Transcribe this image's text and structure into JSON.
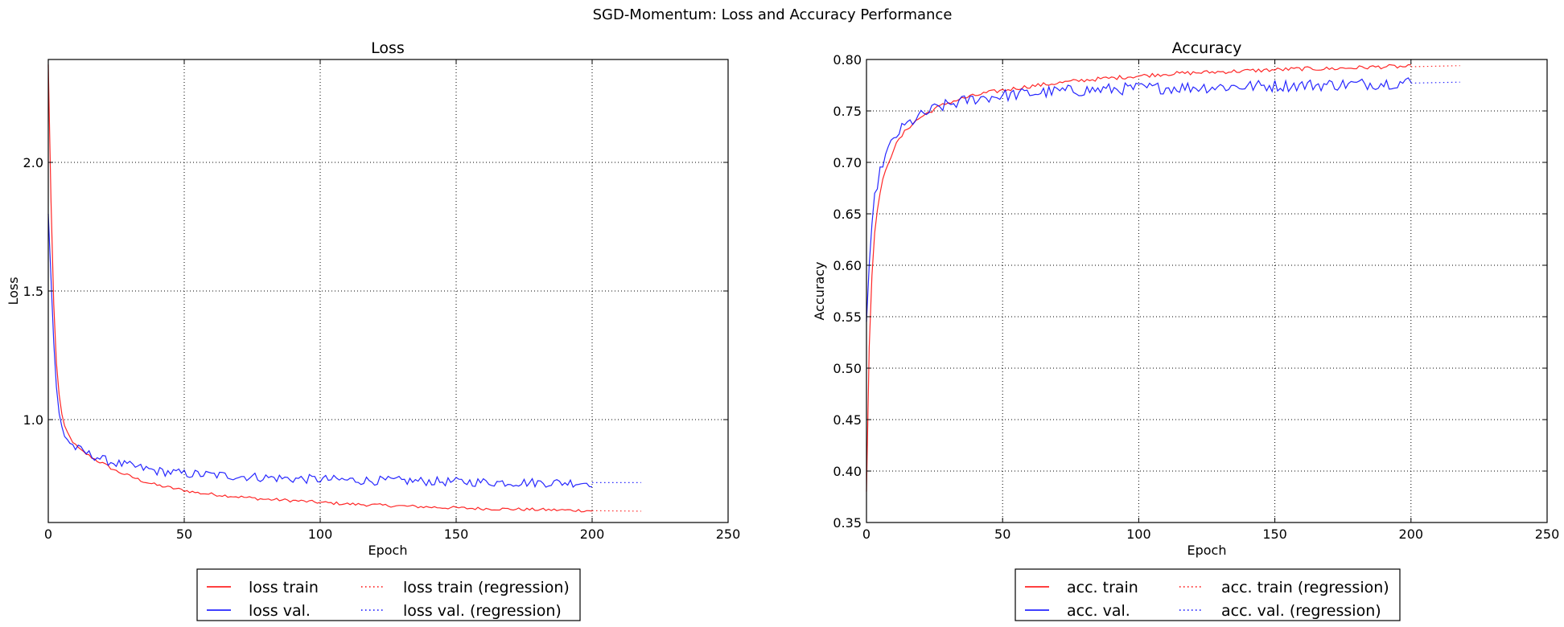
{
  "figure_title": "SGD-Momentum: Loss and Accuracy Performance",
  "colors": {
    "train": "#ff0000",
    "val": "#0000ff",
    "grid": "#000000"
  },
  "chart_data": [
    {
      "id": "loss",
      "type": "line",
      "title": "Loss",
      "xlabel": "Epoch",
      "ylabel": "Loss",
      "xlim": [
        0,
        250
      ],
      "ylim": [
        0.6,
        2.4
      ],
      "xticks": [
        0,
        50,
        100,
        150,
        200,
        250
      ],
      "xtick_labels": [
        "0",
        "50",
        "100",
        "150",
        "200",
        "250"
      ],
      "yticks": [
        1.0,
        1.5,
        2.0
      ],
      "ytick_labels": [
        "1.0",
        "1.5",
        "2.0"
      ],
      "grid": true,
      "legend_position": "below",
      "series": [
        {
          "name": "loss train",
          "color": "#ff0000",
          "style": "solid",
          "points": [
            [
              0,
              2.38
            ],
            [
              1,
              1.85
            ],
            [
              2,
              1.45
            ],
            [
              3,
              1.22
            ],
            [
              4,
              1.1
            ],
            [
              5,
              1.02
            ],
            [
              6,
              0.97
            ],
            [
              8,
              0.93
            ],
            [
              10,
              0.9
            ],
            [
              12,
              0.88
            ],
            [
              15,
              0.86
            ],
            [
              18,
              0.84
            ],
            [
              20,
              0.83
            ],
            [
              25,
              0.8
            ],
            [
              30,
              0.78
            ],
            [
              35,
              0.76
            ],
            [
              40,
              0.745
            ],
            [
              45,
              0.735
            ],
            [
              50,
              0.725
            ],
            [
              55,
              0.715
            ],
            [
              60,
              0.71
            ],
            [
              65,
              0.705
            ],
            [
              70,
              0.7
            ],
            [
              75,
              0.695
            ],
            [
              80,
              0.69
            ],
            [
              85,
              0.688
            ],
            [
              90,
              0.685
            ],
            [
              95,
              0.682
            ],
            [
              100,
              0.678
            ],
            [
              105,
              0.675
            ],
            [
              110,
              0.672
            ],
            [
              115,
              0.67
            ],
            [
              120,
              0.668
            ],
            [
              125,
              0.666
            ],
            [
              130,
              0.664
            ],
            [
              135,
              0.662
            ],
            [
              140,
              0.66
            ],
            [
              145,
              0.658
            ],
            [
              150,
              0.657
            ],
            [
              155,
              0.655
            ],
            [
              160,
              0.654
            ],
            [
              165,
              0.653
            ],
            [
              170,
              0.652
            ],
            [
              175,
              0.651
            ],
            [
              180,
              0.65
            ],
            [
              185,
              0.649
            ],
            [
              190,
              0.648
            ],
            [
              195,
              0.647
            ],
            [
              200,
              0.646
            ]
          ],
          "noise": 0.006
        },
        {
          "name": "loss val.",
          "color": "#0000ff",
          "style": "solid",
          "points": [
            [
              0,
              1.8
            ],
            [
              1,
              1.55
            ],
            [
              2,
              1.3
            ],
            [
              3,
              1.12
            ],
            [
              4,
              1.02
            ],
            [
              5,
              0.97
            ],
            [
              6,
              0.94
            ],
            [
              8,
              0.91
            ],
            [
              10,
              0.89
            ],
            [
              12,
              0.88
            ],
            [
              15,
              0.865
            ],
            [
              18,
              0.855
            ],
            [
              20,
              0.845
            ],
            [
              25,
              0.83
            ],
            [
              30,
              0.82
            ],
            [
              35,
              0.81
            ],
            [
              40,
              0.8
            ],
            [
              45,
              0.795
            ],
            [
              50,
              0.79
            ],
            [
              60,
              0.785
            ],
            [
              70,
              0.78
            ],
            [
              80,
              0.775
            ],
            [
              90,
              0.77
            ],
            [
              100,
              0.768
            ],
            [
              110,
              0.765
            ],
            [
              120,
              0.763
            ],
            [
              130,
              0.762
            ],
            [
              140,
              0.76
            ],
            [
              150,
              0.758
            ],
            [
              160,
              0.757
            ],
            [
              170,
              0.756
            ],
            [
              180,
              0.755
            ],
            [
              190,
              0.755
            ],
            [
              200,
              0.755
            ]
          ],
          "noise": 0.018
        },
        {
          "name": "loss train (regression)",
          "color": "#ff0000",
          "style": "dotted",
          "points": [
            [
              200,
              0.646
            ],
            [
              218,
              0.644
            ]
          ]
        },
        {
          "name": "loss val. (regression)",
          "color": "#0000ff",
          "style": "dotted",
          "points": [
            [
              200,
              0.755
            ],
            [
              218,
              0.755
            ]
          ]
        }
      ]
    },
    {
      "id": "accuracy",
      "type": "line",
      "title": "Accuracy",
      "xlabel": "Epoch",
      "ylabel": "Accuracy",
      "xlim": [
        0,
        250
      ],
      "ylim": [
        0.35,
        0.8
      ],
      "xticks": [
        0,
        50,
        100,
        150,
        200,
        250
      ],
      "xtick_labels": [
        "0",
        "50",
        "100",
        "150",
        "200",
        "250"
      ],
      "yticks": [
        0.35,
        0.4,
        0.45,
        0.5,
        0.55,
        0.6,
        0.65,
        0.7,
        0.75,
        0.8
      ],
      "ytick_labels": [
        "0.35",
        "0.40",
        "0.45",
        "0.50",
        "0.55",
        "0.60",
        "0.65",
        "0.70",
        "0.75",
        "0.80"
      ],
      "grid": true,
      "legend_position": "below",
      "series": [
        {
          "name": "acc. train",
          "color": "#ff0000",
          "style": "solid",
          "points": [
            [
              0,
              0.38
            ],
            [
              1,
              0.52
            ],
            [
              2,
              0.59
            ],
            [
              3,
              0.63
            ],
            [
              4,
              0.655
            ],
            [
              5,
              0.67
            ],
            [
              6,
              0.682
            ],
            [
              8,
              0.7
            ],
            [
              10,
              0.713
            ],
            [
              12,
              0.722
            ],
            [
              15,
              0.733
            ],
            [
              18,
              0.74
            ],
            [
              20,
              0.744
            ],
            [
              25,
              0.752
            ],
            [
              30,
              0.758
            ],
            [
              35,
              0.762
            ],
            [
              40,
              0.765
            ],
            [
              45,
              0.768
            ],
            [
              50,
              0.77
            ],
            [
              60,
              0.774
            ],
            [
              70,
              0.777
            ],
            [
              80,
              0.78
            ],
            [
              90,
              0.782
            ],
            [
              100,
              0.784
            ],
            [
              110,
              0.786
            ],
            [
              120,
              0.787
            ],
            [
              130,
              0.788
            ],
            [
              140,
              0.789
            ],
            [
              150,
              0.79
            ],
            [
              160,
              0.791
            ],
            [
              170,
              0.791
            ],
            [
              180,
              0.792
            ],
            [
              190,
              0.793
            ],
            [
              200,
              0.793
            ]
          ],
          "noise": 0.002
        },
        {
          "name": "acc. val.",
          "color": "#0000ff",
          "style": "solid",
          "points": [
            [
              0,
              0.545
            ],
            [
              1,
              0.6
            ],
            [
              2,
              0.64
            ],
            [
              3,
              0.665
            ],
            [
              4,
              0.68
            ],
            [
              5,
              0.69
            ],
            [
              6,
              0.7
            ],
            [
              8,
              0.712
            ],
            [
              10,
              0.722
            ],
            [
              12,
              0.73
            ],
            [
              15,
              0.737
            ],
            [
              18,
              0.742
            ],
            [
              20,
              0.745
            ],
            [
              25,
              0.752
            ],
            [
              30,
              0.756
            ],
            [
              35,
              0.759
            ],
            [
              40,
              0.762
            ],
            [
              50,
              0.765
            ],
            [
              60,
              0.767
            ],
            [
              70,
              0.769
            ],
            [
              80,
              0.77
            ],
            [
              90,
              0.771
            ],
            [
              100,
              0.772
            ],
            [
              120,
              0.773
            ],
            [
              140,
              0.774
            ],
            [
              160,
              0.775
            ],
            [
              180,
              0.776
            ],
            [
              200,
              0.778
            ]
          ],
          "noise": 0.006
        },
        {
          "name": "acc. train (regression)",
          "color": "#ff0000",
          "style": "dotted",
          "points": [
            [
              200,
              0.793
            ],
            [
              218,
              0.794
            ]
          ]
        },
        {
          "name": "acc. val. (regression)",
          "color": "#0000ff",
          "style": "dotted",
          "points": [
            [
              200,
              0.777
            ],
            [
              218,
              0.778
            ]
          ]
        }
      ]
    }
  ]
}
